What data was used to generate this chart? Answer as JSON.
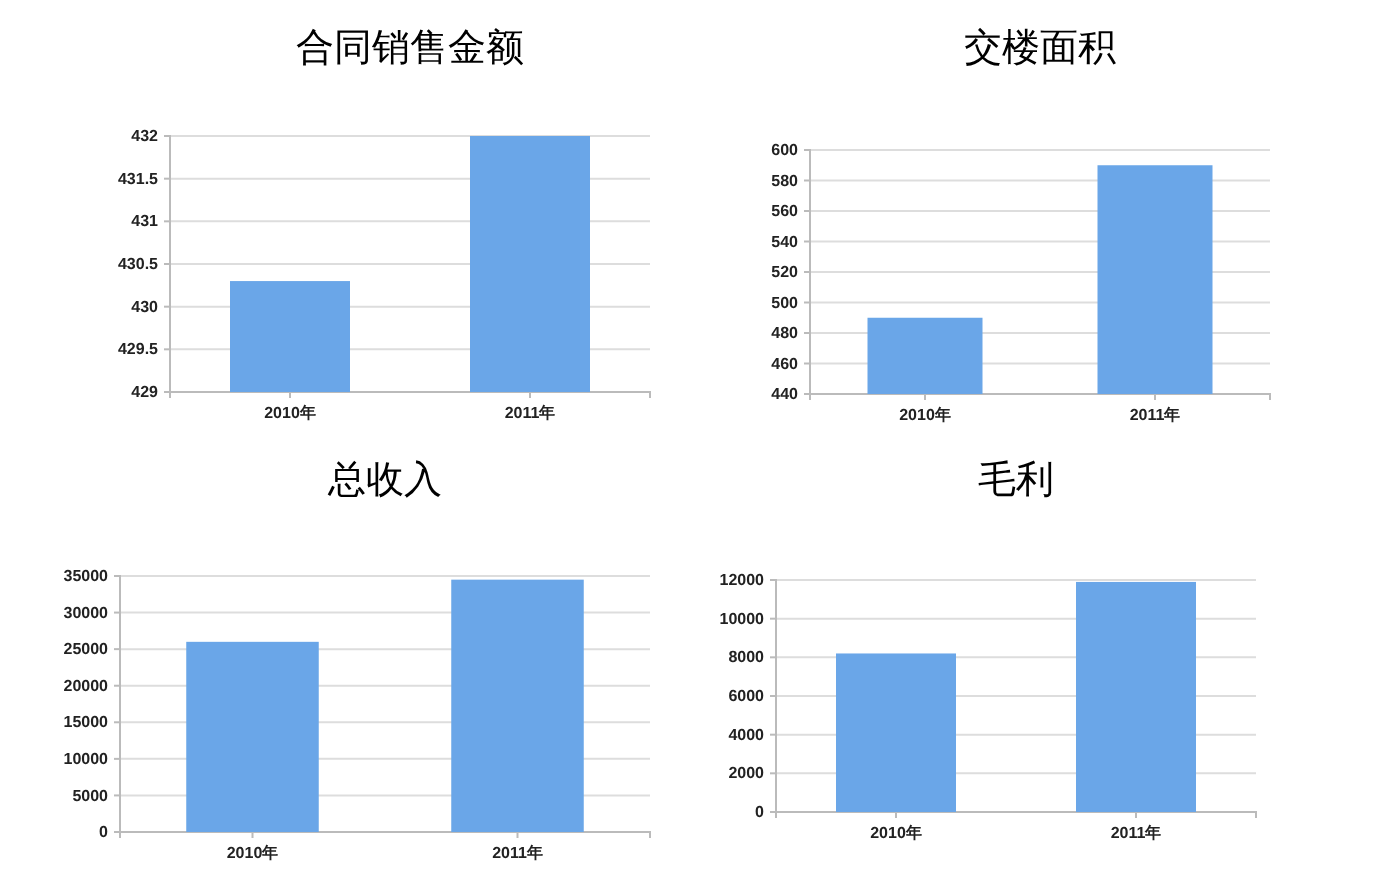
{
  "chart_data": [
    {
      "type": "bar",
      "title": "合同销售金额",
      "categories": [
        "2010年",
        "2011年"
      ],
      "values": [
        430.3,
        432
      ],
      "color": "#6aa6e8",
      "ylim": [
        429,
        432
      ],
      "yticks": [
        429,
        429.5,
        430,
        430.5,
        431,
        431.5,
        432
      ],
      "grid": "y"
    },
    {
      "type": "bar",
      "title": "交楼面积",
      "categories": [
        "2010年",
        "2011年"
      ],
      "values": [
        490,
        590
      ],
      "color": "#6aa6e8",
      "ylim": [
        440,
        600
      ],
      "yticks": [
        440,
        460,
        480,
        500,
        520,
        540,
        560,
        580,
        600
      ],
      "grid": "y"
    },
    {
      "type": "bar",
      "title": "总收入",
      "categories": [
        "2010年",
        "2011年"
      ],
      "values": [
        26000,
        34500
      ],
      "color": "#6aa6e8",
      "ylim": [
        0,
        35000
      ],
      "yticks": [
        0,
        5000,
        10000,
        15000,
        20000,
        25000,
        30000,
        35000
      ],
      "grid": "y"
    },
    {
      "type": "bar",
      "title": "毛利",
      "categories": [
        "2010年",
        "2011年"
      ],
      "values": [
        8200,
        11900
      ],
      "color": "#6aa6e8",
      "ylim": [
        0,
        12000
      ],
      "yticks": [
        0,
        2000,
        4000,
        6000,
        8000,
        10000,
        12000
      ],
      "grid": "y"
    }
  ]
}
